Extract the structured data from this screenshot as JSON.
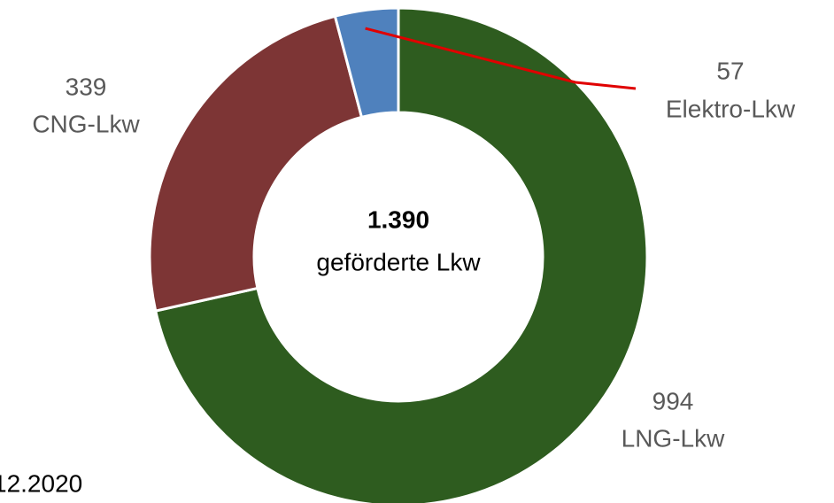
{
  "chart_data": {
    "type": "donut",
    "categories": [
      "LNG-Lkw",
      "CNG-Lkw",
      "Elektro-Lkw"
    ],
    "values": [
      994,
      339,
      57
    ],
    "colors": [
      "#2e5c1f",
      "#7d3535",
      "#4f81bd"
    ],
    "center_value": "1.390",
    "center_text": "geförderte Lkw",
    "footnote": "12.2020"
  }
}
